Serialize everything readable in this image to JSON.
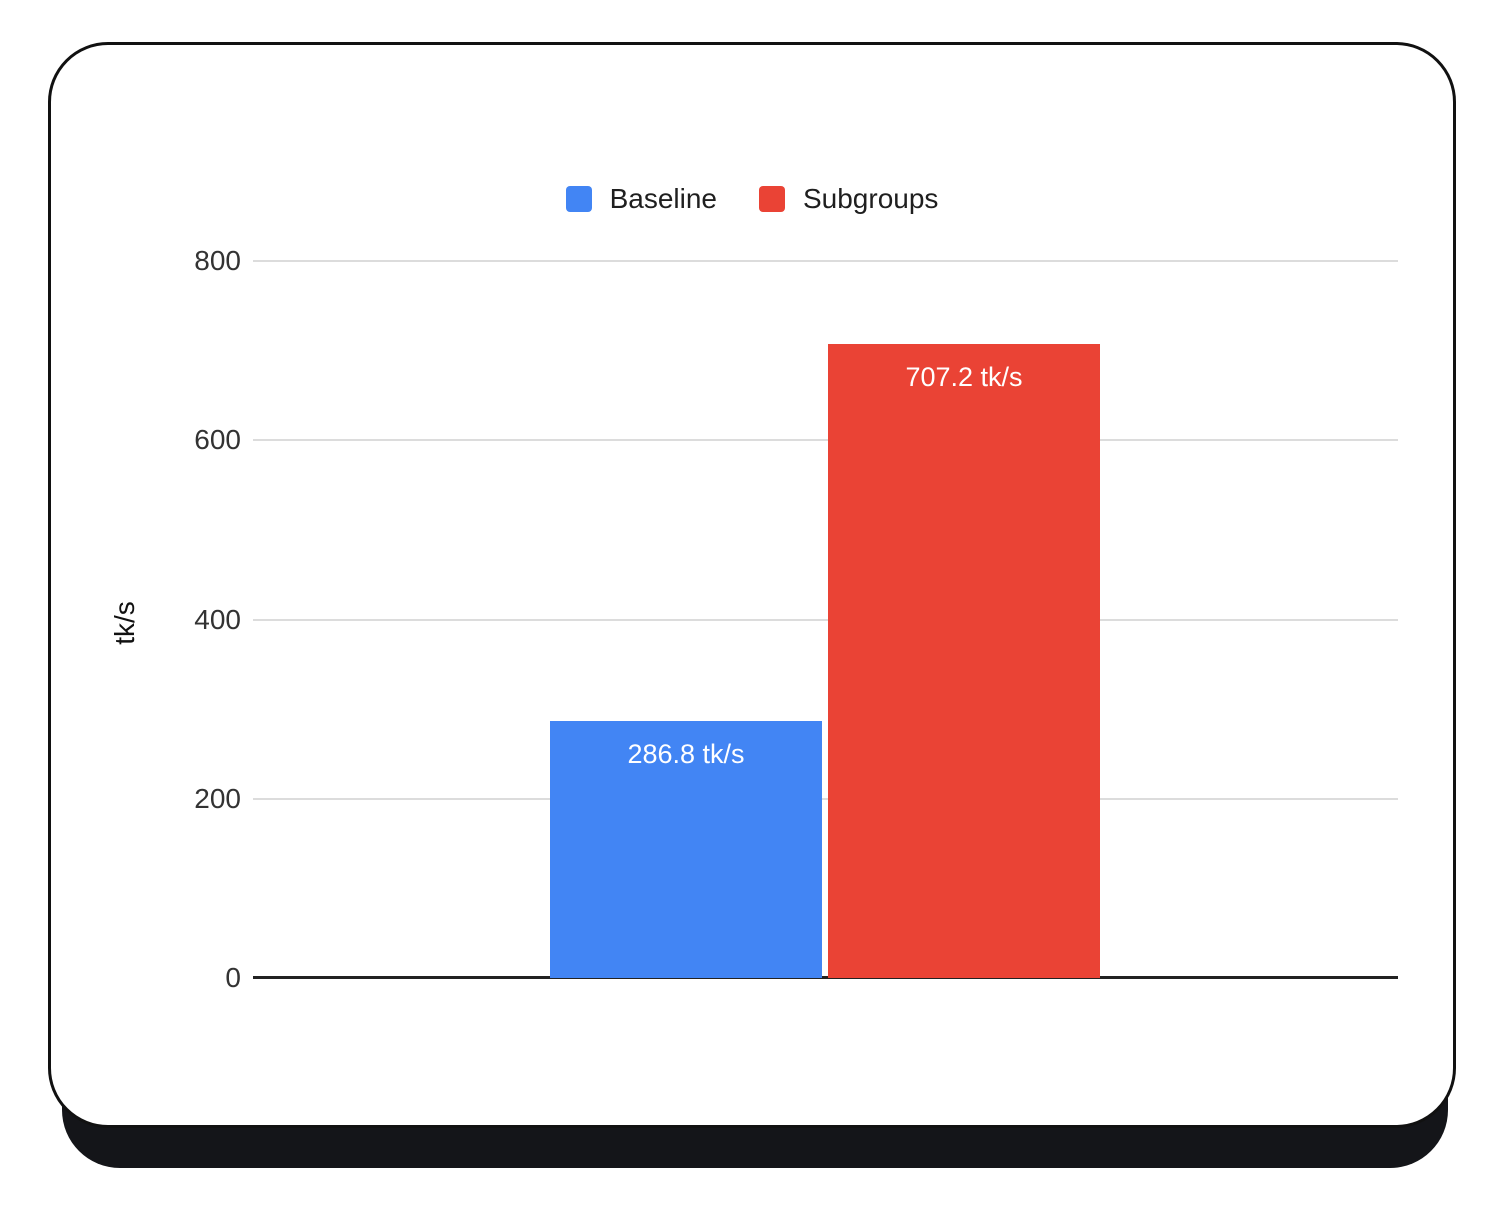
{
  "chart_data": {
    "type": "bar",
    "categories": [
      "Baseline",
      "Subgroups"
    ],
    "values": [
      286.8,
      707.2
    ],
    "bar_labels": [
      "286.8 tk/s",
      "707.2 tk/s"
    ],
    "series_colors": [
      "#4285f4",
      "#ea4335"
    ],
    "title": "",
    "xlabel": "",
    "ylabel": "tk/s",
    "ylim": [
      0,
      800
    ],
    "yticks": [
      0,
      200,
      400,
      600,
      800
    ],
    "grid": true,
    "legend": {
      "position": "top",
      "items": [
        {
          "label": "Baseline",
          "color": "#4285f4"
        },
        {
          "label": "Subgroups",
          "color": "#ea4335"
        }
      ]
    }
  },
  "colors": {
    "card_background": "#ffffff",
    "card_border": "#111111",
    "card_shadow": "#141519",
    "gridline": "#dcdcdc",
    "axis_line": "#222222",
    "tick_text": "#333333",
    "legend_text": "#1f1f1f",
    "bar_label_text": "#ffffff"
  }
}
